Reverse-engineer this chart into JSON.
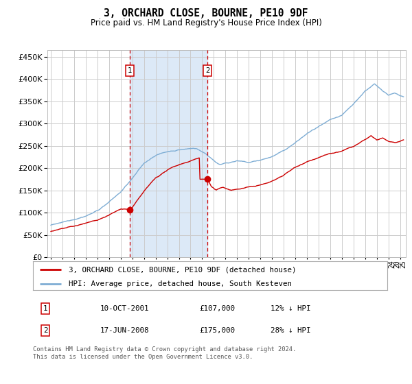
{
  "title": "3, ORCHARD CLOSE, BOURNE, PE10 9DF",
  "subtitle": "Price paid vs. HM Land Registry's House Price Index (HPI)",
  "yticks": [
    0,
    50000,
    100000,
    150000,
    200000,
    250000,
    300000,
    350000,
    400000,
    450000
  ],
  "ylim": [
    0,
    465000
  ],
  "xlim_start": 1994.7,
  "xlim_end": 2025.5,
  "background_color": "#ffffff",
  "plot_bg_color": "#ffffff",
  "grid_color": "#cccccc",
  "transaction1_date": 2001.79,
  "transaction1_price": 107000,
  "transaction2_date": 2008.46,
  "transaction2_price": 175000,
  "shade_color": "#dce9f7",
  "vline_color": "#cc0000",
  "hpi_color": "#7eadd4",
  "price_color": "#cc0000",
  "legend_label_price": "3, ORCHARD CLOSE, BOURNE, PE10 9DF (detached house)",
  "legend_label_hpi": "HPI: Average price, detached house, South Kesteven",
  "note1_date": "10-OCT-2001",
  "note1_price": "£107,000",
  "note1_hpi": "12% ↓ HPI",
  "note2_date": "17-JUN-2008",
  "note2_price": "£175,000",
  "note2_hpi": "28% ↓ HPI",
  "footer": "Contains HM Land Registry data © Crown copyright and database right 2024.\nThis data is licensed under the Open Government Licence v3.0."
}
